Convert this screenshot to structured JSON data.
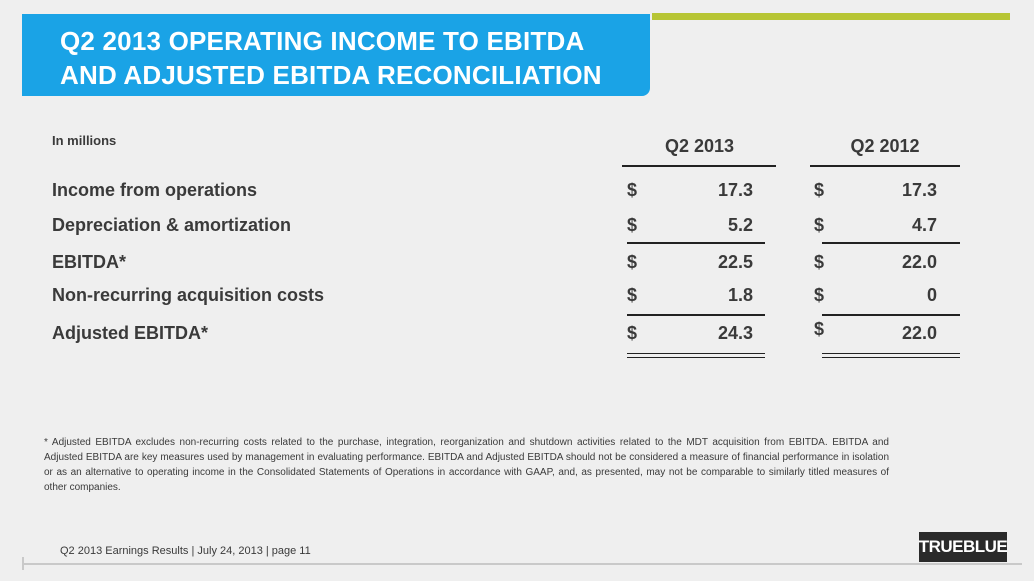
{
  "title": {
    "line1": "Q2 2013 OPERATING INCOME TO EBITDA",
    "line2": "AND ADJUSTED EBITDA RECONCILIATION"
  },
  "units_label": "In millions",
  "columns": [
    "Q2 2013",
    "Q2 2012"
  ],
  "rows": [
    {
      "label": "Income from operations",
      "q2_2013": "17.3",
      "q2_2012": "17.3"
    },
    {
      "label": "Depreciation & amortization",
      "q2_2013": "5.2",
      "q2_2012": "4.7"
    },
    {
      "label": "EBITDA*",
      "q2_2013": "22.5",
      "q2_2012": "22.0"
    },
    {
      "label": "Non-recurring acquisition costs",
      "q2_2013": "1.8",
      "q2_2012": "0"
    },
    {
      "label": "Adjusted EBITDA*",
      "q2_2013": "24.3",
      "q2_2012": "22.0"
    }
  ],
  "currency_symbol": "$",
  "footnote": "* Adjusted EBITDA excludes non-recurring costs related to the purchase, integration, reorganization and shutdown activities related to the MDT acquisition from EBITDA. EBITDA and Adjusted EBITDA are key measures used by management in evaluating performance. EBITDA and Adjusted EBITDA should not be considered a measure of financial performance in isolation or as an alternative to operating income in the Consolidated Statements of Operations in accordance with GAAP, and, as presented, may not be comparable to similarly titled measures of other companies.",
  "footer": "Q2 2013 Earnings Results | July 24, 2013  | page 11",
  "logo_text": "TRUEBLUE",
  "colors": {
    "title_bg": "#1aa3e6",
    "accent": "#b7c534",
    "background": "#efefef"
  }
}
